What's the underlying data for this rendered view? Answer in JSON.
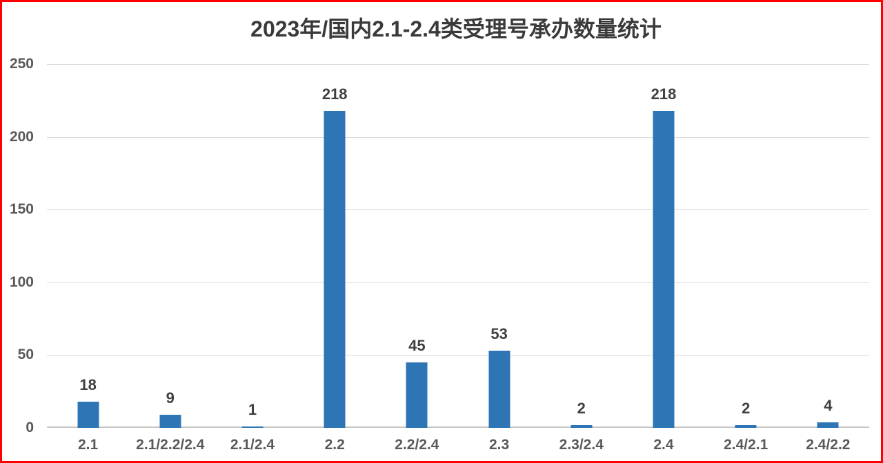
{
  "chart_data": {
    "type": "bar",
    "title": "2023年/国内2.1-2.4类受理号承办数量统计",
    "categories": [
      "2.1",
      "2.1/2.2/2.4",
      "2.1/2.4",
      "2.2",
      "2.2/2.4",
      "2.3",
      "2.3/2.4",
      "2.4",
      "2.4/2.1",
      "2.4/2.2"
    ],
    "values": [
      18,
      9,
      1,
      218,
      45,
      53,
      2,
      218,
      2,
      4
    ],
    "xlabel": "",
    "ylabel": "",
    "ylim": [
      0,
      250
    ],
    "yticks": [
      0,
      50,
      100,
      150,
      200,
      250
    ],
    "grid": true,
    "legend": false,
    "data_labels": true,
    "colors": {
      "bar": "#2E75B6",
      "value_label": "#404040",
      "axis_label": "#595959",
      "gridline": "#D9D9D9",
      "axis_line": "#C6C6C6",
      "title": "#3a3a3a",
      "frame_border": "#FF0000",
      "background": "#FFFFFF"
    }
  }
}
